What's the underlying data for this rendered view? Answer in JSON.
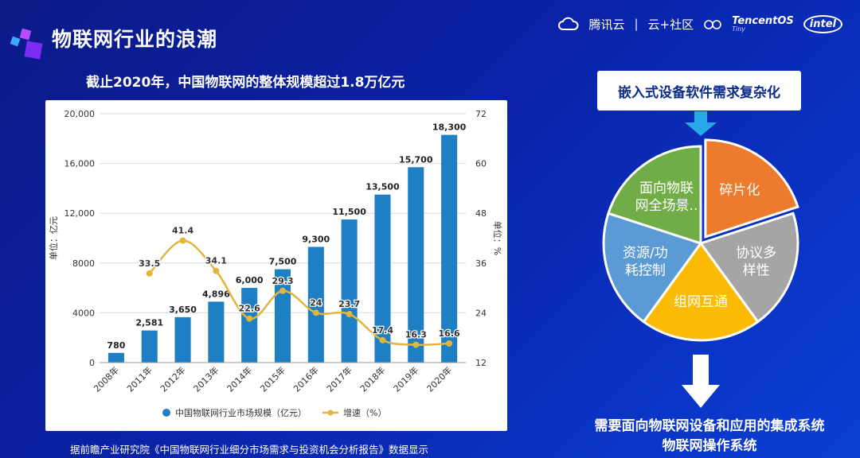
{
  "header": {
    "title": "物联网行业的浪潮",
    "brand_cloud": "腾讯云",
    "brand_sep": "|",
    "brand_community": "云+社区",
    "brand_tos_main": "TencentOS",
    "brand_tos_sub": "Tiny",
    "brand_intel": "intel"
  },
  "subtitle": "截止2020年，中国物联网的整体规模超过1.8万亿元",
  "source_note": "据前瞻产业研究院《中国物联网行业细分市场需求与投资机会分析报告》数据显示",
  "right_panel": {
    "requirement": "嵌入式设备软件需求复杂化",
    "pie_labels": [
      "碎片化",
      "协议多样性",
      "组网互通",
      "资源/功耗控制",
      "面向物联网全场景.."
    ],
    "pie_label_lines": [
      [
        "碎片化"
      ],
      [
        "协议多",
        "样性"
      ],
      [
        "组网互通"
      ],
      [
        "资源/功",
        "耗控制"
      ],
      [
        "面向物联",
        "网全场景.."
      ]
    ],
    "conclusion_line1": "需要面向物联网设备和应用的集成系统",
    "conclusion_line2": "物联网操作系统"
  },
  "colors": {
    "bar": "#1f7fc4",
    "line": "#e2b53d",
    "pie": [
      "#ec7b2e",
      "#a5a5a5",
      "#fbbb05",
      "#5b9bd5",
      "#71ad47"
    ]
  },
  "chart_data": {
    "type": "bar",
    "categories": [
      "2008年",
      "2011年",
      "2012年",
      "2013年",
      "2014年",
      "2015年",
      "2016年",
      "2017年",
      "2018年",
      "2019年",
      "2020年"
    ],
    "series": [
      {
        "name": "中国物联网行业市场规模（亿元）",
        "type": "bar",
        "axis": "left",
        "values": [
          780,
          2581,
          3650,
          4896,
          6000,
          7500,
          9300,
          11500,
          13500,
          15700,
          18300
        ],
        "labels": [
          "780",
          "2,581",
          "3,650",
          "4,896",
          "6,000",
          "7,500",
          "9,300",
          "11,500",
          "13,500",
          "15,700",
          "18,300"
        ]
      },
      {
        "name": "增速（%）",
        "type": "line",
        "axis": "right",
        "values": [
          null,
          33.5,
          41.4,
          34.1,
          22.6,
          29.3,
          24,
          23.7,
          17.4,
          16.3,
          16.6
        ],
        "labels": [
          "",
          "33.5",
          "41.4",
          "34.1",
          "22.6",
          "29.3",
          "24",
          "23.7",
          "17.4",
          "16.3",
          "16.6"
        ]
      }
    ],
    "ylabel": "单位：亿元",
    "y2label": "单位：%",
    "ylim": [
      0,
      20000
    ],
    "y2lim": [
      12,
      72
    ],
    "yticks": [
      "0",
      "4000",
      "8000",
      "12,000",
      "16,000",
      "20,000"
    ],
    "y2ticks": [
      "12",
      "24",
      "36",
      "48",
      "60",
      "72"
    ],
    "grid": true,
    "legend": "bottom"
  }
}
